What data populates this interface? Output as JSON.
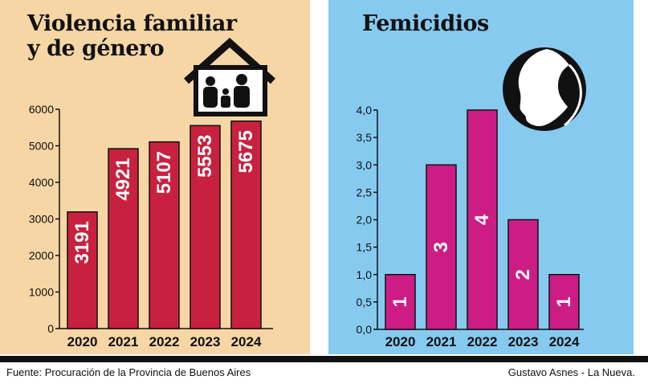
{
  "colors": {
    "left_panel_bg": "#f6d6a5",
    "right_panel_bg": "#86caf0",
    "bar_violencia": "#c8213f",
    "bar_femicidios": "#cd1d84",
    "text": "#111111"
  },
  "panels": {
    "left": {
      "title_line1": "Violencia familiar",
      "title_line2": "y de género",
      "icon": "house-family-icon"
    },
    "right": {
      "title": "Femicidios",
      "icon": "woman-silhouette-icon"
    }
  },
  "chart_data": [
    {
      "type": "bar",
      "title": "Violencia familiar y de género",
      "categories": [
        "2020",
        "2021",
        "2022",
        "2023",
        "2024"
      ],
      "values": [
        3191,
        4921,
        5107,
        5553,
        5675
      ],
      "data_labels": [
        "3191",
        "4921",
        "5107",
        "5553",
        "5675"
      ],
      "ylim": [
        0,
        6000
      ],
      "yticks": [
        0,
        1000,
        2000,
        3000,
        4000,
        5000,
        6000
      ],
      "ytick_labels": [
        "0",
        "1000",
        "2000",
        "3000",
        "4000",
        "5000",
        "6000"
      ],
      "grid": false,
      "legend": "none"
    },
    {
      "type": "bar",
      "title": "Femicidios",
      "categories": [
        "2020",
        "2021",
        "2022",
        "2023",
        "2024"
      ],
      "values": [
        1,
        3,
        4,
        2,
        1
      ],
      "data_labels": [
        "1",
        "3",
        "4",
        "2",
        "1"
      ],
      "ylim": [
        0,
        4
      ],
      "yticks": [
        0,
        0.5,
        1,
        1.5,
        2,
        2.5,
        3,
        3.5,
        4
      ],
      "ytick_labels": [
        "0,0",
        "0,5",
        "1,0",
        "1,5",
        "2,0",
        "2,5",
        "3,0",
        "3,5",
        "4,0"
      ],
      "grid": false,
      "legend": "none"
    }
  ],
  "footer": {
    "source": "Fuente: Procuración de la Provincia de Buenos Aires",
    "credit": "Gustavo Asnes - La Nueva."
  }
}
